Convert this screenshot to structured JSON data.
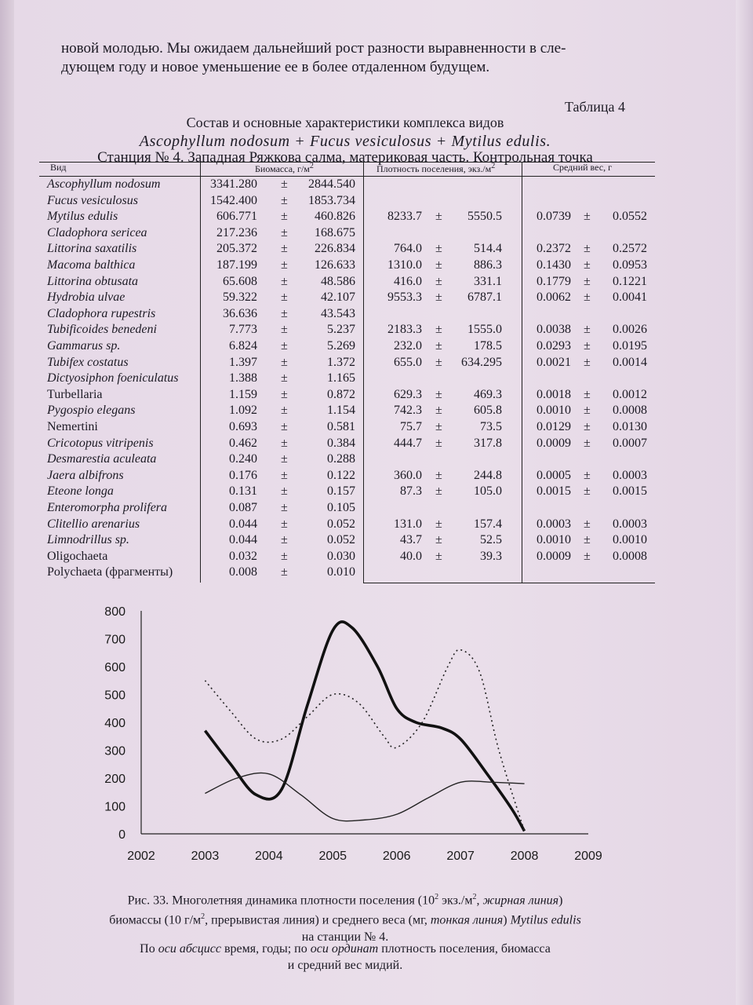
{
  "intro": {
    "line1": "новой молодью. Мы ожидаем дальнейший рост разности выравненности в сле-",
    "line2": "дующем году и новое уменьшение ее в более отдаленном будущем."
  },
  "table": {
    "number": "Таблица 4",
    "caption_line1": "Состав и основные характеристики комплекса видов",
    "caption_line2": "Ascophyllum nodosum + Fucus vesiculosus + Mytilus edulis.",
    "caption_line3": "Станция № 4. Западная Ряжкова салма, материковая часть. Контрольная точка",
    "headers": {
      "species": "Вид",
      "biomass": "Биомасса, г/м",
      "density": "Плотность поселения, экз./м",
      "weight": "Средний вес, г",
      "sup": "2"
    },
    "pm": "±",
    "rows": [
      {
        "species": "Ascophyllum nodosum",
        "italic": true,
        "bm": "3341.280",
        "bs": "2844.540",
        "dm": "",
        "ds": "",
        "wm": "",
        "ws": ""
      },
      {
        "species": "Fucus vesiculosus",
        "italic": true,
        "bm": "1542.400",
        "bs": "1853.734",
        "dm": "",
        "ds": "",
        "wm": "",
        "ws": ""
      },
      {
        "species": "Mytilus edulis",
        "italic": true,
        "bm": "606.771",
        "bs": "460.826",
        "dm": "8233.7",
        "ds": "5550.5",
        "wm": "0.0739",
        "ws": "0.0552"
      },
      {
        "species": "Cladophora sericea",
        "italic": true,
        "bm": "217.236",
        "bs": "168.675",
        "dm": "",
        "ds": "",
        "wm": "",
        "ws": ""
      },
      {
        "species": "Littorina saxatilis",
        "italic": true,
        "bm": "205.372",
        "bs": "226.834",
        "dm": "764.0",
        "ds": "514.4",
        "wm": "0.2372",
        "ws": "0.2572"
      },
      {
        "species": "Macoma balthica",
        "italic": true,
        "bm": "187.199",
        "bs": "126.633",
        "dm": "1310.0",
        "ds": "886.3",
        "wm": "0.1430",
        "ws": "0.0953"
      },
      {
        "species": "Littorina obtusata",
        "italic": true,
        "bm": "65.608",
        "bs": "48.586",
        "dm": "416.0",
        "ds": "331.1",
        "wm": "0.1779",
        "ws": "0.1221"
      },
      {
        "species": "Hydrobia ulvae",
        "italic": true,
        "bm": "59.322",
        "bs": "42.107",
        "dm": "9553.3",
        "ds": "6787.1",
        "wm": "0.0062",
        "ws": "0.0041"
      },
      {
        "species": "Cladophora rupestris",
        "italic": true,
        "bm": "36.636",
        "bs": "43.543",
        "dm": "",
        "ds": "",
        "wm": "",
        "ws": ""
      },
      {
        "species": "Tubificoides benedeni",
        "italic": true,
        "bm": "7.773",
        "bs": "5.237",
        "dm": "2183.3",
        "ds": "1555.0",
        "wm": "0.0038",
        "ws": "0.0026"
      },
      {
        "species": "Gammarus sp.",
        "italic": true,
        "bm": "6.824",
        "bs": "5.269",
        "dm": "232.0",
        "ds": "178.5",
        "wm": "0.0293",
        "ws": "0.0195"
      },
      {
        "species": "Tubifex costatus",
        "italic": true,
        "bm": "1.397",
        "bs": "1.372",
        "dm": "655.0",
        "ds": "634.295",
        "wm": "0.0021",
        "ws": "0.0014"
      },
      {
        "species": "Dictyosiphon foeniculatus",
        "italic": true,
        "bm": "1.388",
        "bs": "1.165",
        "dm": "",
        "ds": "",
        "wm": "",
        "ws": ""
      },
      {
        "species": "Turbellaria",
        "italic": false,
        "bm": "1.159",
        "bs": "0.872",
        "dm": "629.3",
        "ds": "469.3",
        "wm": "0.0018",
        "ws": "0.0012"
      },
      {
        "species": "Pygospio elegans",
        "italic": true,
        "bm": "1.092",
        "bs": "1.154",
        "dm": "742.3",
        "ds": "605.8",
        "wm": "0.0010",
        "ws": "0.0008"
      },
      {
        "species": "Nemertini",
        "italic": false,
        "bm": "0.693",
        "bs": "0.581",
        "dm": "75.7",
        "ds": "73.5",
        "wm": "0.0129",
        "ws": "0.0130"
      },
      {
        "species": "Cricotopus vitripenis",
        "italic": true,
        "bm": "0.462",
        "bs": "0.384",
        "dm": "444.7",
        "ds": "317.8",
        "wm": "0.0009",
        "ws": "0.0007"
      },
      {
        "species": "Desmarestia aculeata",
        "italic": true,
        "bm": "0.240",
        "bs": "0.288",
        "dm": "",
        "ds": "",
        "wm": "",
        "ws": ""
      },
      {
        "species": "Jaera albifrons",
        "italic": true,
        "bm": "0.176",
        "bs": "0.122",
        "dm": "360.0",
        "ds": "244.8",
        "wm": "0.0005",
        "ws": "0.0003"
      },
      {
        "species": "Eteone longa",
        "italic": true,
        "bm": "0.131",
        "bs": "0.157",
        "dm": "87.3",
        "ds": "105.0",
        "wm": "0.0015",
        "ws": "0.0015"
      },
      {
        "species": "Enteromorpha prolifera",
        "italic": true,
        "bm": "0.087",
        "bs": "0.105",
        "dm": "",
        "ds": "",
        "wm": "",
        "ws": ""
      },
      {
        "species": "Clitellio arenarius",
        "italic": true,
        "bm": "0.044",
        "bs": "0.052",
        "dm": "131.0",
        "ds": "157.4",
        "wm": "0.0003",
        "ws": "0.0003"
      },
      {
        "species": "Limnodrillus sp.",
        "italic": true,
        "bm": "0.044",
        "bs": "0.052",
        "dm": "43.7",
        "ds": "52.5",
        "wm": "0.0010",
        "ws": "0.0010"
      },
      {
        "species": "Oligochaeta",
        "italic": false,
        "bm": "0.032",
        "bs": "0.030",
        "dm": "40.0",
        "ds": "39.3",
        "wm": "0.0009",
        "ws": "0.0008"
      },
      {
        "species": "Polychaeta (фрагменты)",
        "italic": false,
        "bm": "0.008",
        "bs": "0.010",
        "dm": "",
        "ds": "",
        "wm": "",
        "ws": ""
      }
    ]
  },
  "chart_data": {
    "type": "line",
    "title": "",
    "xlabel": "",
    "ylabel": "",
    "xlim": [
      2002,
      2009
    ],
    "ylim": [
      0,
      800
    ],
    "x_ticks": [
      "2002",
      "2003",
      "2004",
      "2005",
      "2006",
      "2007",
      "2008",
      "2009"
    ],
    "y_ticks": [
      "0",
      "100",
      "200",
      "300",
      "400",
      "500",
      "600",
      "700",
      "800"
    ],
    "grid": false,
    "series": [
      {
        "style": "thick",
        "x": [
          2003,
          2003.4,
          2003.8,
          2004.2,
          2004.6,
          2005.0,
          2005.3,
          2005.7,
          2006.0,
          2006.3,
          2006.7,
          2007.0,
          2007.4,
          2007.8,
          2008.0
        ],
        "values": [
          370,
          250,
          140,
          160,
          460,
          730,
          740,
          600,
          450,
          400,
          380,
          340,
          220,
          90,
          10
        ]
      },
      {
        "style": "dotted",
        "x": [
          2003,
          2003.4,
          2003.8,
          2004.2,
          2004.6,
          2005.0,
          2005.4,
          2005.8,
          2006.0,
          2006.4,
          2006.8,
          2007.0,
          2007.3,
          2007.6,
          2008.0
        ],
        "values": [
          550,
          440,
          340,
          340,
          420,
          500,
          470,
          350,
          310,
          400,
          600,
          660,
          580,
          300,
          10
        ]
      },
      {
        "style": "thin",
        "x": [
          2003,
          2003.5,
          2004.0,
          2004.5,
          2005.0,
          2005.5,
          2006.0,
          2006.5,
          2007.0,
          2007.5,
          2008.0
        ],
        "values": [
          145,
          200,
          215,
          140,
          55,
          50,
          70,
          130,
          185,
          185,
          180
        ]
      }
    ]
  },
  "figure": {
    "l1_a": "Рис. 33. Многолетняя динамика плотности поселения (10",
    "l1_sup": "2",
    "l1_b": " экз./м",
    "l1_sup2": "2",
    "l1_c": ", ",
    "l1_i": "жирная линия",
    "l1_d": ")",
    "l2_a": "биомассы (10 г/м",
    "l2_sup": "2",
    "l2_b": ", прерывистая линия) и среднего веса (мг, ",
    "l2_i": "тонкая линия",
    "l2_c": ") ",
    "l2_i2": "Mytilus edulis",
    "l3": "на станции № 4.",
    "l4_a": "По ",
    "l4_i": "оси абсцисс",
    "l4_b": " время, годы; по ",
    "l4_i2": "оси ординат",
    "l4_c": " плотность поселения, биомасса",
    "l5": "и средний вес мидий."
  }
}
